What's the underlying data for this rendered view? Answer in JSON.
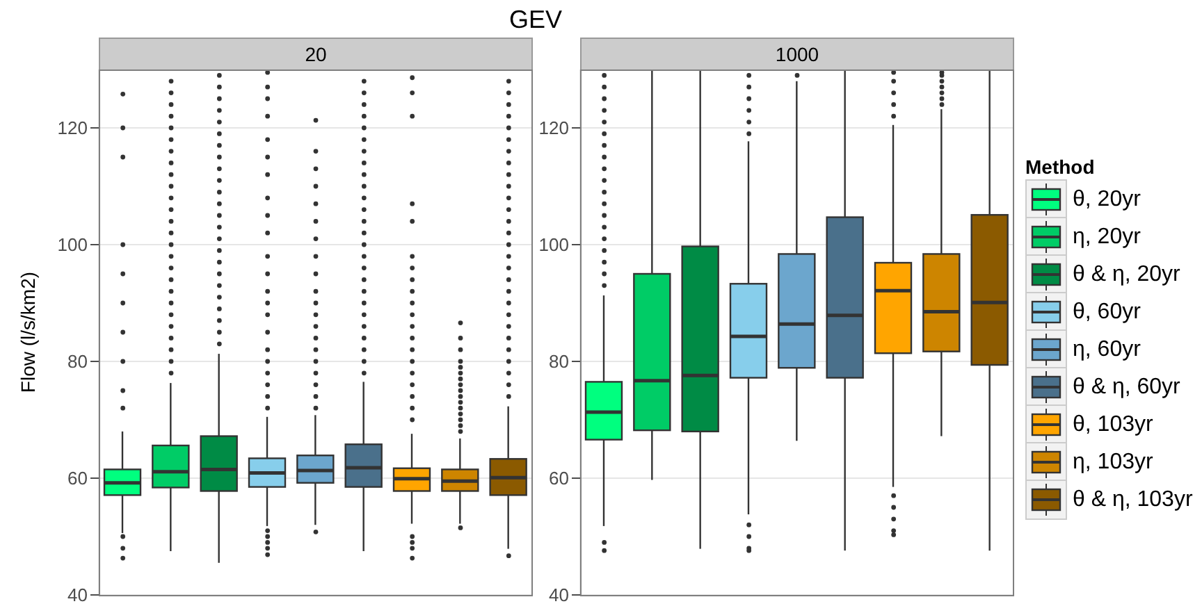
{
  "chart_data": [
    {
      "type": "box",
      "title": "GEV",
      "subtitle": "20",
      "ylabel": "Flow (l/s/km2)",
      "categories": [
        null,
        null,
        null,
        null,
        null,
        null,
        null,
        null,
        null
      ],
      "ylim": [
        40,
        130
      ],
      "yticks": [
        40,
        60,
        80,
        100,
        120
      ],
      "grid": true,
      "legend": "right",
      "legend_title": "Method",
      "tick_labels": "y",
      "series": [
        {
          "name": "θ, 20yr",
          "color": "#00ff7f",
          "boxes": [
            {
              "low": 50.6,
              "q1": 57.1,
              "median": 59.2,
              "q3": 61.5,
              "high": 68.0,
              "outliers": [
                125.8,
                120,
                115,
                100,
                95,
                90,
                85,
                80,
                75,
                72,
                50,
                48,
                46.3
              ]
            },
            null,
            null,
            null,
            null,
            null,
            null,
            null,
            null
          ]
        },
        {
          "name": "η, 20yr",
          "color": "#00cc66",
          "boxes": [
            null,
            {
              "low": 47.5,
              "q1": 58.4,
              "median": 61.1,
              "q3": 65.6,
              "high": 76.3,
              "outliers": [
                78,
                80,
                82,
                84,
                86,
                88,
                90,
                92,
                94,
                96,
                98,
                100,
                102,
                104,
                106,
                108,
                110,
                112,
                114,
                116,
                118,
                120,
                122,
                124,
                126,
                128
              ]
            },
            null,
            null,
            null,
            null,
            null,
            null,
            null
          ]
        },
        {
          "name": "θ & η, 20yr",
          "color": "#008b45",
          "boxes": [
            null,
            null,
            {
              "low": 45.5,
              "q1": 57.8,
              "median": 61.5,
              "q3": 67.2,
              "high": 81.3,
              "outliers": [
                83,
                85,
                87,
                89,
                91,
                93,
                95,
                97,
                99,
                101,
                103,
                105,
                107,
                109,
                111,
                113,
                115,
                117,
                119,
                121,
                123,
                125,
                127,
                129
              ]
            },
            null,
            null,
            null,
            null,
            null,
            null
          ]
        },
        {
          "name": "θ, 60yr",
          "color": "#87ceeb",
          "boxes": [
            null,
            null,
            null,
            {
              "low": 51.8,
              "q1": 58.5,
              "median": 60.9,
              "q3": 63.4,
              "high": 70.5,
              "outliers": [
                129.5,
                127,
                125,
                122,
                118,
                115,
                112,
                108,
                105,
                102,
                98,
                95,
                92,
                90,
                88,
                85,
                82,
                80,
                78,
                76,
                74,
                72,
                51,
                50,
                49,
                48,
                46.9
              ]
            },
            null,
            null,
            null,
            null,
            null
          ]
        },
        {
          "name": "η, 60yr",
          "color": "#6ca6cd",
          "boxes": [
            null,
            null,
            null,
            null,
            {
              "low": 52.0,
              "q1": 59.2,
              "median": 61.3,
              "q3": 63.9,
              "high": 70.8,
              "outliers": [
                121.3,
                116,
                113,
                110,
                107,
                104,
                101,
                98,
                95,
                92,
                90,
                88,
                86,
                84,
                82,
                80,
                78,
                76,
                74,
                72,
                50.8
              ]
            },
            null,
            null,
            null,
            null
          ]
        },
        {
          "name": "θ & η, 60yr",
          "color": "#4a708b",
          "boxes": [
            null,
            null,
            null,
            null,
            null,
            {
              "low": 47.5,
              "q1": 58.5,
              "median": 61.8,
              "q3": 65.8,
              "high": 76.5,
              "outliers": [
                78,
                80,
                82,
                84,
                86,
                88,
                90,
                92,
                94,
                96,
                98,
                100,
                102,
                104,
                106,
                108,
                110,
                112,
                114,
                116,
                118,
                120,
                122,
                124,
                126,
                128
              ]
            },
            null,
            null,
            null
          ]
        },
        {
          "name": "θ, 103yr",
          "color": "#ffa500",
          "boxes": [
            null,
            null,
            null,
            null,
            null,
            null,
            {
              "low": 52.2,
              "q1": 57.8,
              "median": 59.9,
              "q3": 61.7,
              "high": 67.6,
              "outliers": [
                128.6,
                126,
                122,
                107,
                104,
                98,
                96,
                94,
                92,
                90,
                88,
                86,
                84,
                82,
                80,
                78,
                76,
                74,
                72,
                70,
                50,
                49,
                48,
                46.3
              ]
            },
            null,
            null
          ]
        },
        {
          "name": "η, 103yr",
          "color": "#cd8500",
          "boxes": [
            null,
            null,
            null,
            null,
            null,
            null,
            null,
            {
              "low": 52.2,
              "q1": 57.8,
              "median": 59.5,
              "q3": 61.5,
              "high": 66.8,
              "outliers": [
                86.6,
                84,
                82,
                80,
                79,
                78,
                77,
                76,
                75,
                74,
                73,
                72,
                71,
                70,
                69,
                68,
                51.5
              ]
            },
            null
          ]
        },
        {
          "name": "θ & η, 103yr",
          "color": "#8b5a00",
          "boxes": [
            null,
            null,
            null,
            null,
            null,
            null,
            null,
            null,
            {
              "low": 47.9,
              "q1": 57.1,
              "median": 60.1,
              "q3": 63.3,
              "high": 72.3,
              "outliers": [
                74,
                76,
                78,
                80,
                82,
                84,
                86,
                88,
                90,
                92,
                94,
                96,
                98,
                100,
                102,
                104,
                106,
                108,
                110,
                112,
                114,
                116,
                118,
                120,
                122,
                124,
                126,
                128,
                46.7
              ]
            }
          ]
        }
      ]
    },
    {
      "type": "box",
      "subtitle": "1000",
      "categories": [
        null,
        null,
        null,
        null,
        null,
        null,
        null,
        null,
        null
      ],
      "ylim": [
        40,
        130
      ],
      "yticks": [
        40,
        60,
        80,
        100,
        120
      ],
      "grid": true,
      "tick_labels": "y",
      "series": [
        {
          "color": "#00ff7f",
          "boxes": [
            {
              "low": 51.8,
              "q1": 66.6,
              "median": 71.3,
              "q3": 76.5,
              "high": 91.3,
              "outliers": [
                93,
                95,
                97,
                99,
                101,
                103,
                105,
                107,
                109,
                111,
                113,
                115,
                117,
                119,
                121,
                123,
                125,
                127,
                129,
                49,
                47.6
              ]
            },
            null,
            null,
            null,
            null,
            null,
            null,
            null,
            null
          ]
        },
        {
          "color": "#00cc66",
          "boxes": [
            null,
            {
              "low": 59.7,
              "q1": 68.2,
              "median": 76.7,
              "q3": 95.0,
              "high": 130
            },
            null,
            null,
            null,
            null,
            null,
            null,
            null
          ]
        },
        {
          "color": "#008b45",
          "boxes": [
            null,
            null,
            {
              "low": 47.9,
              "q1": 68.0,
              "median": 77.6,
              "q3": 99.7,
              "high": 130
            },
            null,
            null,
            null,
            null,
            null,
            null
          ]
        },
        {
          "color": "#87ceeb",
          "boxes": [
            null,
            null,
            null,
            {
              "low": 53.8,
              "q1": 77.2,
              "median": 84.3,
              "q3": 93.3,
              "high": 117.7,
              "outliers": [
                119,
                121,
                123,
                125,
                127,
                129,
                52,
                50,
                48,
                47.6
              ]
            },
            null,
            null,
            null,
            null,
            null
          ]
        },
        {
          "color": "#6ca6cd",
          "boxes": [
            null,
            null,
            null,
            null,
            {
              "low": 66.4,
              "q1": 78.9,
              "median": 86.4,
              "q3": 98.4,
              "high": 128,
              "outliers": [
                129
              ]
            },
            null,
            null,
            null,
            null
          ]
        },
        {
          "color": "#4a708b",
          "boxes": [
            null,
            null,
            null,
            null,
            null,
            {
              "low": 47.6,
              "q1": 77.2,
              "median": 87.9,
              "q3": 104.7,
              "high": 130
            },
            null,
            null,
            null
          ]
        },
        {
          "color": "#ffa500",
          "boxes": [
            null,
            null,
            null,
            null,
            null,
            null,
            {
              "low": 58.5,
              "q1": 81.4,
              "median": 92.1,
              "q3": 96.9,
              "high": 120.5,
              "outliers": [
                122,
                124,
                126,
                128,
                129.5,
                57,
                55,
                53,
                51,
                50.3
              ]
            },
            null,
            null
          ]
        },
        {
          "color": "#cd8500",
          "boxes": [
            null,
            null,
            null,
            null,
            null,
            null,
            null,
            {
              "low": 67.2,
              "q1": 81.7,
              "median": 88.5,
              "q3": 98.4,
              "high": 123.2,
              "outliers": [
                124,
                125,
                126,
                127,
                128,
                129,
                129.5
              ]
            },
            null
          ]
        },
        {
          "color": "#8b5a00",
          "boxes": [
            null,
            null,
            null,
            null,
            null,
            null,
            null,
            null,
            {
              "low": 47.6,
              "q1": 79.4,
              "median": 90.1,
              "q3": 105.1,
              "high": 130
            }
          ]
        }
      ]
    }
  ]
}
